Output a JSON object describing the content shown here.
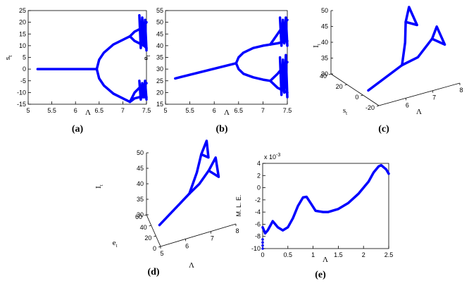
{
  "chart_data": [
    {
      "type": "line",
      "label": "(a)",
      "xlabel": "Λ",
      "ylabel": "s",
      "ylabel_sub": "t",
      "xlim": [
        5,
        7.5
      ],
      "xticks": [
        5,
        5.5,
        6,
        6.5,
        7,
        7.5
      ],
      "ylim": [
        -15,
        25
      ],
      "yticks": [
        -15,
        -10,
        -5,
        0,
        5,
        10,
        15,
        20,
        25
      ],
      "color": "#0000ff",
      "series": [
        {
          "x": [
            5.2,
            6.45
          ],
          "values": [
            0,
            0
          ]
        },
        {
          "x": [
            6.45,
            6.5,
            6.6,
            6.8,
            7.0,
            7.15
          ],
          "values": [
            0,
            4,
            7,
            10.5,
            12.5,
            14
          ]
        },
        {
          "x": [
            6.45,
            6.5,
            6.6,
            6.8,
            7.0,
            7.15
          ],
          "values": [
            0,
            -4,
            -7,
            -10.5,
            -12.5,
            -14
          ]
        },
        {
          "x": [
            7.15,
            7.25,
            7.35,
            7.45,
            7.5
          ],
          "values": [
            14,
            16,
            17,
            18.5,
            20
          ]
        },
        {
          "x": [
            7.15,
            7.25,
            7.35,
            7.45,
            7.5
          ],
          "values": [
            14,
            12,
            11,
            10,
            9
          ]
        },
        {
          "x": [
            7.35,
            7.38,
            7.41,
            7.44,
            7.47,
            7.5
          ],
          "values": [
            23,
            9,
            22,
            10,
            21,
            8
          ]
        },
        {
          "x": [
            7.15,
            7.25,
            7.35,
            7.45,
            7.5
          ],
          "values": [
            -14,
            -10,
            -8,
            -7,
            -6
          ]
        },
        {
          "x": [
            7.15,
            7.25,
            7.35,
            7.45,
            7.5
          ],
          "values": [
            -14,
            -12.5,
            -12,
            -12,
            -12
          ]
        },
        {
          "x": [
            7.35,
            7.38,
            7.41,
            7.44,
            7.47,
            7.5
          ],
          "values": [
            -5,
            -13,
            -6,
            -12,
            -5,
            -13
          ]
        }
      ]
    },
    {
      "type": "line",
      "label": "(b)",
      "xlabel": "Λ",
      "ylabel": "e",
      "ylabel_sub": "t",
      "xlim": [
        5,
        7.5
      ],
      "xticks": [
        5,
        5.5,
        6,
        6.5,
        7,
        7.5
      ],
      "ylim": [
        15,
        55
      ],
      "yticks": [
        15,
        20,
        25,
        30,
        35,
        40,
        45,
        50,
        55
      ],
      "color": "#0000ff",
      "series": [
        {
          "x": [
            5.2,
            6.45
          ],
          "values": [
            26,
            32.5
          ]
        },
        {
          "x": [
            6.45,
            6.5,
            6.6,
            6.8,
            7.0,
            7.15
          ],
          "values": [
            32.5,
            35,
            37,
            39,
            40,
            40.5
          ]
        },
        {
          "x": [
            6.45,
            6.5,
            6.6,
            6.8,
            7.0,
            7.15
          ],
          "values": [
            32.5,
            30,
            28,
            26.5,
            25.5,
            25
          ]
        },
        {
          "x": [
            7.15,
            7.3,
            7.5
          ],
          "values": [
            40.5,
            45,
            51
          ]
        },
        {
          "x": [
            7.15,
            7.3,
            7.5
          ],
          "values": [
            40.5,
            41,
            42
          ]
        },
        {
          "x": [
            7.35,
            7.38,
            7.41,
            7.44,
            7.47,
            7.5
          ],
          "values": [
            52,
            40,
            51,
            41,
            52,
            40
          ]
        },
        {
          "x": [
            7.15,
            7.3,
            7.5
          ],
          "values": [
            25,
            28,
            33
          ]
        },
        {
          "x": [
            7.15,
            7.3,
            7.5
          ],
          "values": [
            25,
            22,
            20
          ]
        },
        {
          "x": [
            7.35,
            7.38,
            7.41,
            7.44,
            7.47,
            7.5
          ],
          "values": [
            35,
            19,
            34,
            20,
            36,
            18
          ]
        }
      ]
    },
    {
      "type": "line3d",
      "label": "(c)",
      "xlabel": "Λ",
      "ylabel": "s",
      "ylabel_sub": "t",
      "zlabel": "I",
      "zlabel_sub": "t",
      "xlim": [
        5,
        8
      ],
      "xticks": [
        6,
        7,
        8
      ],
      "ylim": [
        -20,
        40
      ],
      "yticks": [
        -20,
        0,
        20,
        40
      ],
      "zlim": [
        30,
        50
      ],
      "zticks": [
        30,
        35,
        40,
        45,
        50
      ],
      "color": "#0000ff",
      "series": [
        {
          "x": [
            5.2,
            6.45
          ],
          "y": [
            0,
            0
          ],
          "z": [
            31,
            36
          ]
        },
        {
          "x": [
            6.45,
            6.8,
            7.0
          ],
          "y": [
            0,
            8,
            14
          ],
          "z": [
            36,
            41,
            46
          ]
        },
        {
          "x": [
            6.45,
            6.8,
            7.15
          ],
          "y": [
            0,
            -8,
            -14
          ],
          "z": [
            36,
            39,
            45
          ]
        },
        {
          "x": [
            7.0,
            7.3,
            7.3,
            7.0
          ],
          "y": [
            14,
            20,
            10,
            14
          ],
          "z": [
            46,
            49,
            45,
            46
          ]
        },
        {
          "x": [
            7.15,
            7.5,
            7.5,
            7.15
          ],
          "y": [
            -14,
            -8,
            -18,
            -14
          ],
          "z": [
            45,
            47,
            43,
            45
          ]
        }
      ]
    },
    {
      "type": "line3d",
      "label": "(d)",
      "xlabel": "Λ",
      "ylabel": "e",
      "ylabel_sub": "t",
      "zlabel": "I",
      "zlabel_sub": "t",
      "xlim": [
        5,
        8
      ],
      "xticks": [
        5,
        6,
        7,
        8
      ],
      "ylim": [
        0,
        60
      ],
      "yticks": [
        0,
        20,
        40,
        60
      ],
      "zlim": [
        30,
        50
      ],
      "zticks": [
        30,
        35,
        40,
        45,
        50
      ],
      "color": "#0000ff",
      "series": [
        {
          "x": [
            5.2,
            6.45
          ],
          "y": [
            26,
            32.5
          ],
          "z": [
            32,
            38
          ]
        },
        {
          "x": [
            6.45,
            6.8,
            7.0
          ],
          "y": [
            32.5,
            38,
            40.5
          ],
          "z": [
            38,
            43,
            48
          ]
        },
        {
          "x": [
            6.45,
            6.8,
            7.15
          ],
          "y": [
            32.5,
            28,
            25
          ],
          "z": [
            38,
            41,
            45
          ]
        },
        {
          "x": [
            7.0,
            7.3,
            7.3,
            7.0
          ],
          "y": [
            40.5,
            50,
            42,
            40.5
          ],
          "z": [
            48,
            50,
            46,
            48
          ]
        },
        {
          "x": [
            7.15,
            7.5,
            7.5,
            7.15
          ],
          "y": [
            25,
            33,
            20,
            25
          ],
          "z": [
            45,
            47,
            43,
            45
          ]
        }
      ]
    },
    {
      "type": "line",
      "label": "(e)",
      "xlabel": "Λ",
      "ylabel": "M. L. E.",
      "y_multiplier": "x 10",
      "y_multiplier_exp": "-3",
      "xlim": [
        0,
        2.5
      ],
      "xticks": [
        0,
        0.5,
        1,
        1.5,
        2,
        2.5
      ],
      "ylim": [
        -10,
        4
      ],
      "yticks": [
        -10,
        -8,
        -6,
        -4,
        -2,
        0,
        2,
        4
      ],
      "color": "#0000ff",
      "series": [
        {
          "x": [
            0,
            0.05,
            0.1,
            0.2,
            0.3,
            0.4,
            0.5,
            0.6,
            0.7,
            0.8,
            0.87,
            0.95,
            1.05,
            1.2,
            1.3,
            1.5,
            1.7,
            1.9,
            2.1,
            2.2,
            2.3,
            2.35,
            2.45,
            2.5
          ],
          "values": [
            -6.5,
            -7.5,
            -7,
            -5.5,
            -6.5,
            -7,
            -6.5,
            -5,
            -3,
            -1.6,
            -1.5,
            -2.5,
            -3.8,
            -4,
            -4,
            -3.5,
            -2.5,
            -1,
            1,
            2.5,
            3.5,
            3.7,
            3,
            2.3
          ]
        },
        {
          "style": "markers",
          "x": [
            0,
            0,
            0,
            0
          ],
          "values": [
            -8.5,
            -9,
            -9.5,
            -10
          ]
        }
      ]
    }
  ]
}
